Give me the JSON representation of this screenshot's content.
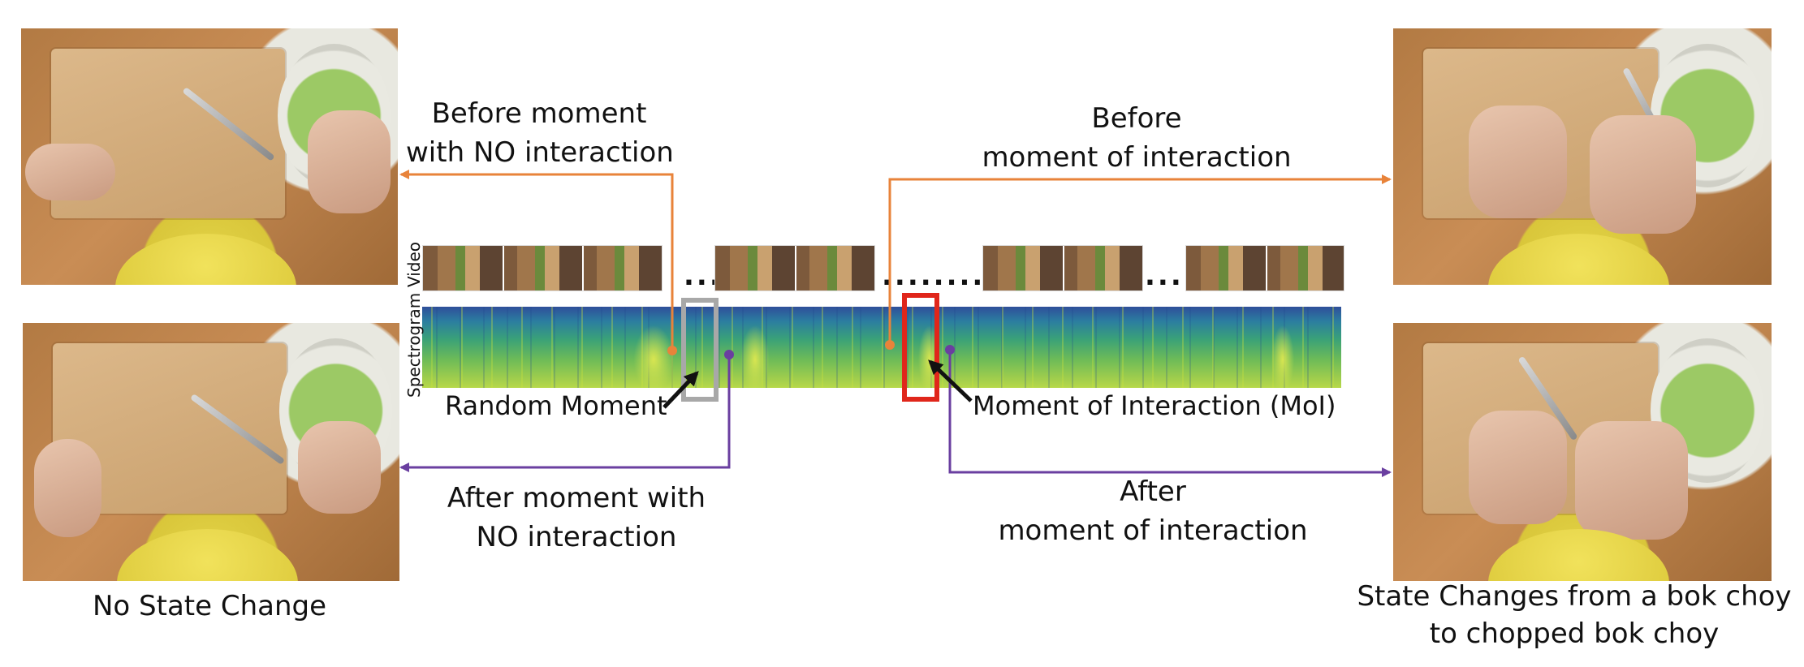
{
  "labels": {
    "before_no_interaction": [
      "Before moment",
      "with NO interaction"
    ],
    "before_interaction": [
      "Before",
      "moment of interaction"
    ],
    "after_no_interaction": [
      "After moment with",
      "NO interaction"
    ],
    "after_interaction": [
      "After",
      "moment of interaction"
    ],
    "random_moment": "Random Moment",
    "moment_of_interaction": "Moment of Interaction (MoI)",
    "video_axis": "Video",
    "spectrogram_axis": "Spectrogram"
  },
  "captions": {
    "left": "No State Change",
    "right": [
      "State Changes from a bok choy",
      "to chopped bok choy"
    ]
  },
  "colors": {
    "before_arrow": "#e8833a",
    "after_arrow": "#6a3fa0",
    "random_box": "#a8a8a8",
    "moi_box": "#e0261b"
  },
  "images": [
    {
      "name": "before-no-interaction-frame"
    },
    {
      "name": "after-no-interaction-frame"
    },
    {
      "name": "before-interaction-frame"
    },
    {
      "name": "after-interaction-frame"
    }
  ]
}
